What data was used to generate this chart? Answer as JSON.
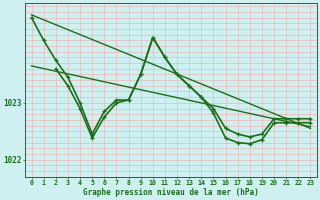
{
  "title": "Graphe pression niveau de la mer (hPa)",
  "background_color": "#cef0f0",
  "grid_color_v": "#e8b8b8",
  "grid_color_h": "#e8b8b8",
  "line_color": "#1a6e1a",
  "ylim": [
    1021.7,
    1024.75
  ],
  "xlim": [
    -0.5,
    23.5
  ],
  "yticks": [
    1022,
    1023
  ],
  "xticks": [
    0,
    1,
    2,
    3,
    4,
    5,
    6,
    7,
    8,
    9,
    10,
    11,
    12,
    13,
    14,
    15,
    16,
    17,
    18,
    19,
    20,
    21,
    22,
    23
  ],
  "series_straight_1": {
    "x": [
      0,
      23
    ],
    "y": [
      1024.55,
      1022.55
    ],
    "marker": false,
    "linewidth": 1.0
  },
  "series_straight_2": {
    "x": [
      0,
      23
    ],
    "y": [
      1023.65,
      1022.58
    ],
    "marker": false,
    "linewidth": 1.0
  },
  "series_curved_1": {
    "x": [
      0,
      1,
      2,
      3,
      4,
      5,
      6,
      7,
      8,
      9,
      10,
      11,
      12,
      13,
      14,
      15,
      16,
      17,
      18,
      19,
      20,
      21,
      22,
      23
    ],
    "y": [
      1024.5,
      1024.1,
      1023.75,
      1023.45,
      1023.0,
      1022.45,
      1022.85,
      1023.05,
      1023.05,
      1023.5,
      1024.15,
      1023.8,
      1023.5,
      1023.3,
      1023.1,
      1022.9,
      1022.55,
      1022.45,
      1022.4,
      1022.45,
      1022.72,
      1022.72,
      1022.72,
      1022.72
    ],
    "marker": true,
    "linewidth": 1.2
  },
  "series_curved_2": {
    "x": [
      2,
      3,
      4,
      5,
      6,
      7,
      8,
      9,
      10,
      11,
      12,
      13,
      14,
      15,
      16,
      17,
      18,
      19,
      20,
      21,
      22,
      23
    ],
    "y": [
      1023.6,
      1023.3,
      1022.9,
      1022.38,
      1022.75,
      1023.0,
      1023.05,
      1023.5,
      1024.15,
      1023.8,
      1023.5,
      1023.3,
      1023.1,
      1022.82,
      1022.38,
      1022.3,
      1022.28,
      1022.35,
      1022.65,
      1022.65,
      1022.65,
      1022.65
    ],
    "marker": true,
    "linewidth": 1.2
  }
}
